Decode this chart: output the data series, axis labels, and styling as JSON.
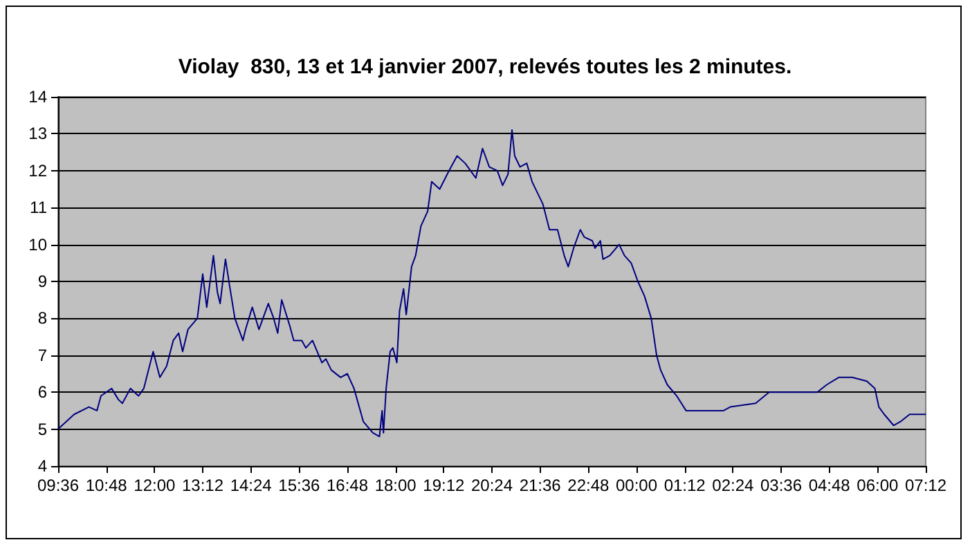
{
  "chart_data": {
    "type": "line",
    "title": "Violay  830, 13 et 14 janvier 2007, relevés toutes les 2 minutes.",
    "x": [
      "2007-01-13T09:36",
      "2007-01-13T10:00",
      "2007-01-13T10:22",
      "2007-01-13T10:34",
      "2007-01-13T10:40",
      "2007-01-13T10:56",
      "2007-01-13T11:06",
      "2007-01-13T11:12",
      "2007-01-13T11:24",
      "2007-01-13T11:36",
      "2007-01-13T11:44",
      "2007-01-13T11:58",
      "2007-01-13T12:08",
      "2007-01-13T12:18",
      "2007-01-13T12:28",
      "2007-01-13T12:36",
      "2007-01-13T12:42",
      "2007-01-13T12:50",
      "2007-01-13T13:04",
      "2007-01-13T13:12",
      "2007-01-13T13:18",
      "2007-01-13T13:28",
      "2007-01-13T13:34",
      "2007-01-13T13:38",
      "2007-01-13T13:46",
      "2007-01-13T13:52",
      "2007-01-13T14:00",
      "2007-01-13T14:12",
      "2007-01-13T14:16",
      "2007-01-13T14:26",
      "2007-01-13T14:36",
      "2007-01-13T14:50",
      "2007-01-13T14:58",
      "2007-01-13T15:04",
      "2007-01-13T15:10",
      "2007-01-13T15:22",
      "2007-01-13T15:28",
      "2007-01-13T15:40",
      "2007-01-13T15:46",
      "2007-01-13T15:56",
      "2007-01-13T16:10",
      "2007-01-13T16:16",
      "2007-01-13T16:24",
      "2007-01-13T16:38",
      "2007-01-13T16:48",
      "2007-01-13T16:58",
      "2007-01-13T17:12",
      "2007-01-13T17:26",
      "2007-01-13T17:36",
      "2007-01-13T17:40",
      "2007-01-13T17:42",
      "2007-01-13T17:46",
      "2007-01-13T17:52",
      "2007-01-13T17:56",
      "2007-01-13T18:02",
      "2007-01-13T18:06",
      "2007-01-13T18:12",
      "2007-01-13T18:16",
      "2007-01-13T18:24",
      "2007-01-13T18:30",
      "2007-01-13T18:38",
      "2007-01-13T18:48",
      "2007-01-13T18:54",
      "2007-01-13T19:06",
      "2007-01-13T19:20",
      "2007-01-13T19:32",
      "2007-01-13T19:44",
      "2007-01-13T20:00",
      "2007-01-13T20:10",
      "2007-01-13T20:20",
      "2007-01-13T20:32",
      "2007-01-13T20:40",
      "2007-01-13T20:48",
      "2007-01-13T20:54",
      "2007-01-13T20:58",
      "2007-01-13T21:06",
      "2007-01-13T21:16",
      "2007-01-13T21:24",
      "2007-01-13T21:40",
      "2007-01-13T21:50",
      "2007-01-13T22:02",
      "2007-01-13T22:12",
      "2007-01-13T22:18",
      "2007-01-13T22:26",
      "2007-01-13T22:36",
      "2007-01-13T22:42",
      "2007-01-13T22:54",
      "2007-01-13T22:58",
      "2007-01-13T23:06",
      "2007-01-13T23:10",
      "2007-01-13T23:20",
      "2007-01-13T23:34",
      "2007-01-13T23:42",
      "2007-01-13T23:52",
      "2007-01-14T00:02",
      "2007-01-14T00:12",
      "2007-01-14T00:22",
      "2007-01-14T00:30",
      "2007-01-14T00:36",
      "2007-01-14T00:46",
      "2007-01-14T01:00",
      "2007-01-14T01:14",
      "2007-01-14T01:36",
      "2007-01-14T02:10",
      "2007-01-14T02:20",
      "2007-01-14T02:58",
      "2007-01-14T03:18",
      "2007-01-14T03:50",
      "2007-01-14T04:30",
      "2007-01-14T04:44",
      "2007-01-14T05:02",
      "2007-01-14T05:22",
      "2007-01-14T05:44",
      "2007-01-14T05:56",
      "2007-01-14T06:02",
      "2007-01-14T06:10",
      "2007-01-14T06:24",
      "2007-01-14T06:34",
      "2007-01-14T06:48",
      "2007-01-14T07:02",
      "2007-01-14T07:12"
    ],
    "series": [
      {
        "color": "#000080",
        "values": [
          5.0,
          5.4,
          5.6,
          5.5,
          5.9,
          6.1,
          5.8,
          5.7,
          6.1,
          5.9,
          6.1,
          7.1,
          6.4,
          6.7,
          7.4,
          7.6,
          7.1,
          7.7,
          8.0,
          9.2,
          8.3,
          9.7,
          8.7,
          8.4,
          9.6,
          8.9,
          8.0,
          7.4,
          7.7,
          8.3,
          7.7,
          8.4,
          8.0,
          7.6,
          8.5,
          7.8,
          7.4,
          7.4,
          7.2,
          7.4,
          6.8,
          6.9,
          6.6,
          6.4,
          6.5,
          6.1,
          5.2,
          4.9,
          4.8,
          5.5,
          4.9,
          6.1,
          7.1,
          7.2,
          6.8,
          8.2,
          8.8,
          8.1,
          9.4,
          9.7,
          10.5,
          10.9,
          11.7,
          11.5,
          12.0,
          12.4,
          12.2,
          11.8,
          12.6,
          12.1,
          12.0,
          11.6,
          11.9,
          13.1,
          12.4,
          12.1,
          12.2,
          11.7,
          11.1,
          10.4,
          10.4,
          9.7,
          9.4,
          9.9,
          10.4,
          10.2,
          10.1,
          9.9,
          10.1,
          9.6,
          9.7,
          10.0,
          9.7,
          9.5,
          9.0,
          8.6,
          8.0,
          7.0,
          6.6,
          6.2,
          5.9,
          5.5,
          5.5,
          5.5,
          5.6,
          5.7,
          6.0,
          6.0,
          6.0,
          6.2,
          6.4,
          6.4,
          6.3,
          6.1,
          5.6,
          5.4,
          5.1,
          5.2,
          5.4,
          5.4,
          5.4
        ]
      }
    ],
    "xlim": [
      "2007-01-13T09:36",
      "2007-01-14T07:12"
    ],
    "xticks": [
      {
        "value": "2007-01-13T09:36",
        "label": "09:36"
      },
      {
        "value": "2007-01-13T10:48",
        "label": "10:48"
      },
      {
        "value": "2007-01-13T12:00",
        "label": "12:00"
      },
      {
        "value": "2007-01-13T13:12",
        "label": "13:12"
      },
      {
        "value": "2007-01-13T14:24",
        "label": "14:24"
      },
      {
        "value": "2007-01-13T15:36",
        "label": "15:36"
      },
      {
        "value": "2007-01-13T16:48",
        "label": "16:48"
      },
      {
        "value": "2007-01-13T18:00",
        "label": "18:00"
      },
      {
        "value": "2007-01-13T19:12",
        "label": "19:12"
      },
      {
        "value": "2007-01-13T20:24",
        "label": "20:24"
      },
      {
        "value": "2007-01-13T21:36",
        "label": "21:36"
      },
      {
        "value": "2007-01-13T22:48",
        "label": "22:48"
      },
      {
        "value": "2007-01-14T00:00",
        "label": "00:00"
      },
      {
        "value": "2007-01-14T01:12",
        "label": "01:12"
      },
      {
        "value": "2007-01-14T02:24",
        "label": "02:24"
      },
      {
        "value": "2007-01-14T03:36",
        "label": "03:36"
      },
      {
        "value": "2007-01-14T04:48",
        "label": "04:48"
      },
      {
        "value": "2007-01-14T06:00",
        "label": "06:00"
      },
      {
        "value": "2007-01-14T07:12",
        "label": "07:12"
      }
    ],
    "ylim": [
      4,
      14
    ],
    "yticks": [
      4,
      5,
      6,
      7,
      8,
      9,
      10,
      11,
      12,
      13,
      14
    ],
    "grid": "y",
    "marker": "none",
    "line_style": "solid"
  }
}
